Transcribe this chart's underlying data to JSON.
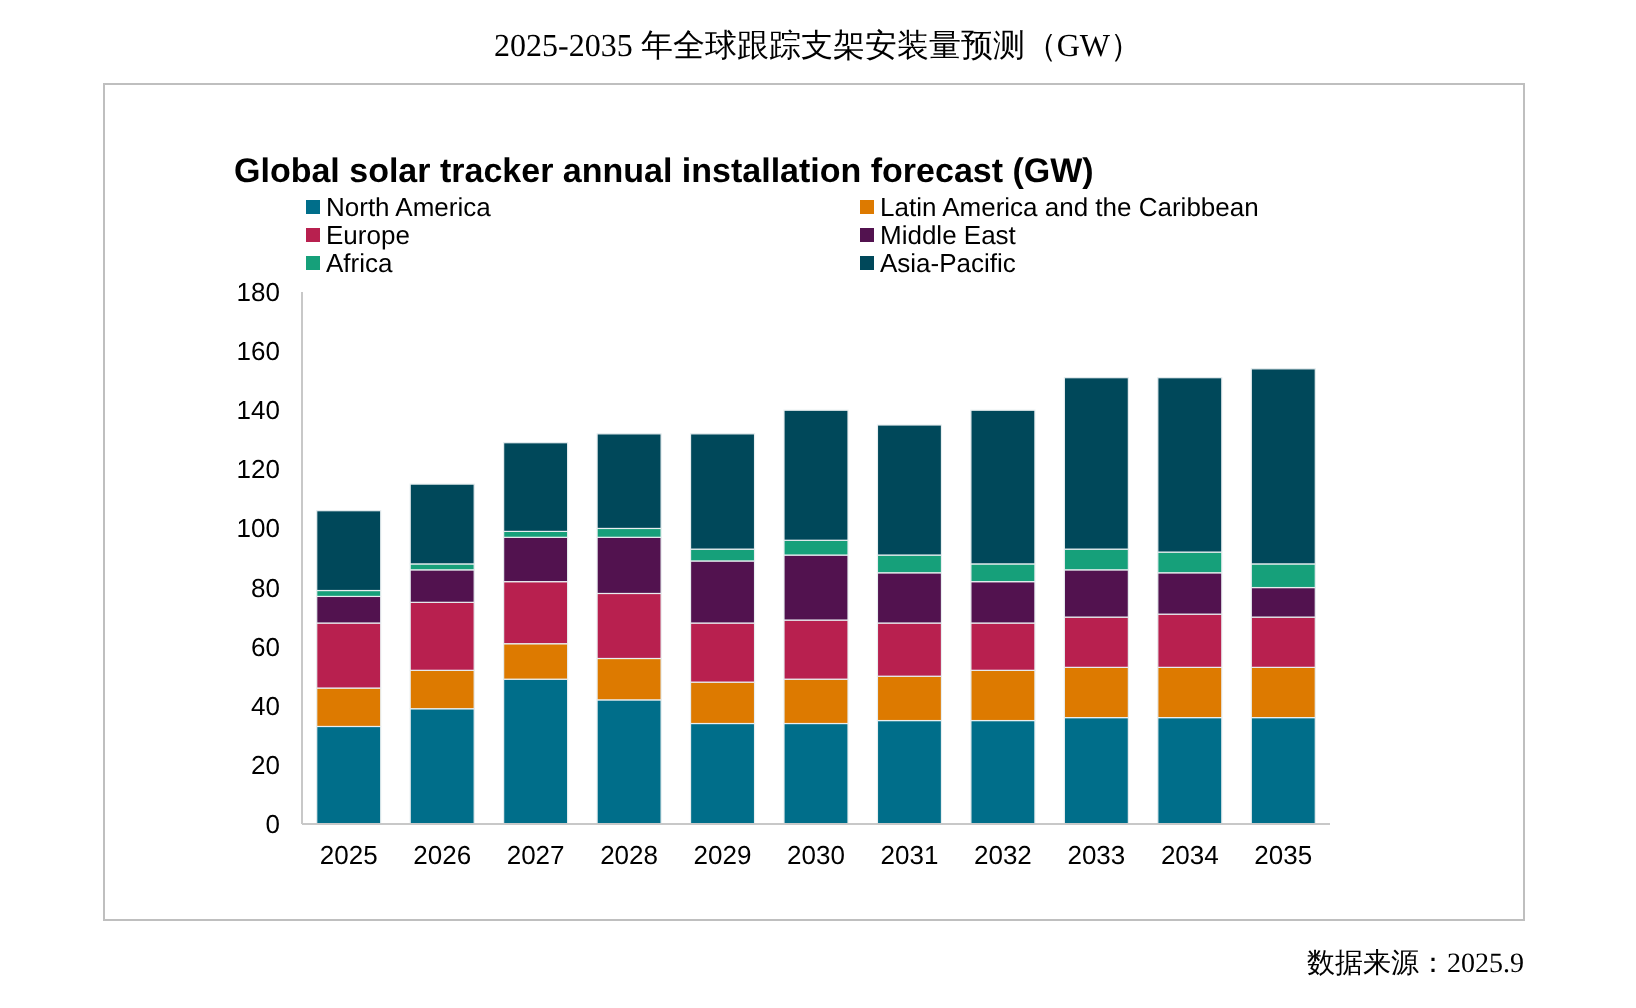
{
  "chart_data": {
    "type": "bar",
    "stacked": true,
    "title": "2025-2035 年全球跟踪支架安装量预测（GW）",
    "subtitle": "Global solar tracker annual installation forecast (GW)",
    "categories": [
      "2025",
      "2026",
      "2027",
      "2028",
      "2029",
      "2030",
      "2031",
      "2032",
      "2033",
      "2034",
      "2035"
    ],
    "series": [
      {
        "name": "North America",
        "color": "#006e8a",
        "values": [
          33,
          39,
          49,
          42,
          34,
          34,
          35,
          35,
          36,
          36,
          36
        ]
      },
      {
        "name": "Latin America and the Caribbean",
        "color": "#dd7a00",
        "values": [
          13,
          13,
          12,
          14,
          14,
          15,
          15,
          17,
          17,
          17,
          17
        ]
      },
      {
        "name": "Europe",
        "color": "#b8204f",
        "values": [
          22,
          23,
          21,
          22,
          20,
          20,
          18,
          16,
          17,
          18,
          17
        ]
      },
      {
        "name": "Middle East",
        "color": "#52124f",
        "values": [
          9,
          11,
          15,
          19,
          21,
          22,
          17,
          14,
          16,
          14,
          10
        ]
      },
      {
        "name": "Africa",
        "color": "#16a07a",
        "values": [
          2,
          2,
          2,
          3,
          4,
          5,
          6,
          6,
          7,
          7,
          8
        ]
      },
      {
        "name": "Asia-Pacific",
        "color": "#00485a",
        "values": [
          27,
          27,
          30,
          32,
          39,
          44,
          44,
          52,
          58,
          59,
          66
        ]
      }
    ],
    "ylim": [
      0,
      180
    ],
    "yticks": [
      0,
      20,
      40,
      60,
      80,
      100,
      120,
      140,
      160,
      180
    ],
    "legend": "top",
    "grid": false,
    "annotations": [
      "数据来源：2025.9"
    ]
  }
}
